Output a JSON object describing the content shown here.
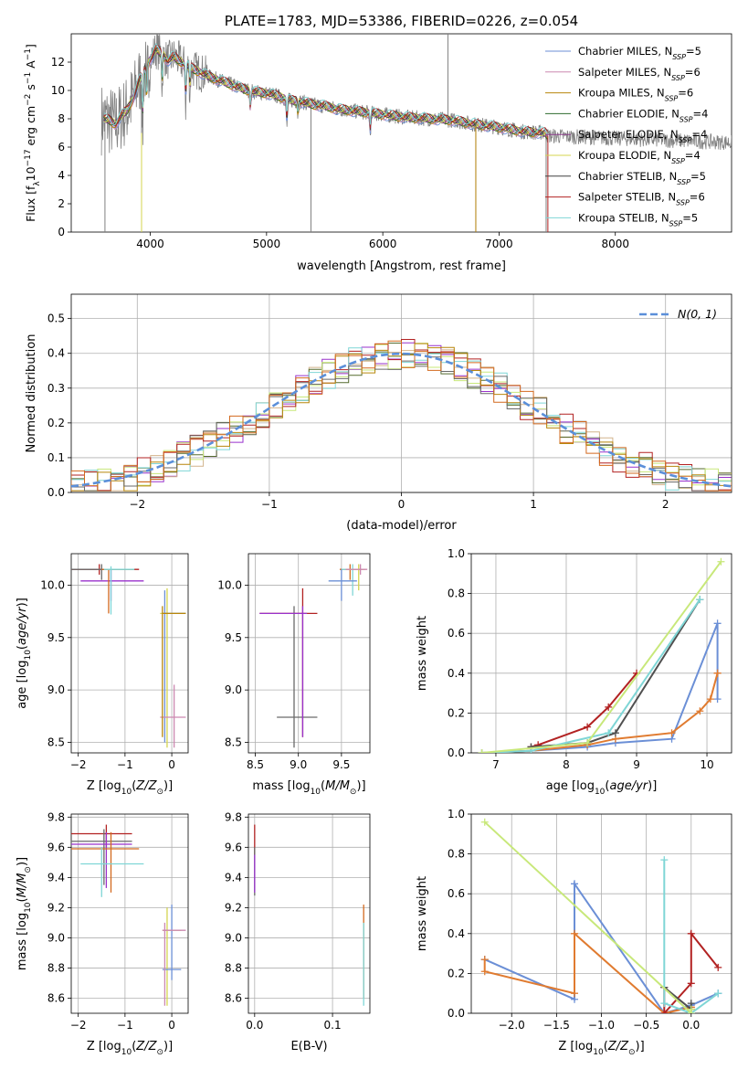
{
  "colors": {
    "data": "#808080",
    "fit": [
      "#6b8fd6",
      "#cc88b0",
      "#b8860b",
      "#2e6b2e",
      "#8b3a8b",
      "#d4d44f",
      "#404040",
      "#b22222",
      "#7fd6d6"
    ],
    "hist": [
      "#9932cc",
      "#d2b48c",
      "#556b2f",
      "#c8e87a",
      "#b22222",
      "#7fd6d6",
      "#b8860b",
      "#696969",
      "#d2691e"
    ],
    "normal": "#5b8fd9",
    "p_cols": [
      "#b22222",
      "#6a6a6a",
      "#9932cc",
      "#d2691e",
      "#7fd6d6",
      "#d4d44f",
      "#6b8fd6",
      "#cc88b0",
      "#b8860b"
    ],
    "mw": [
      "#6b8fd6",
      "#e07b30",
      "#b22222",
      "#505050",
      "#7fd6d6",
      "#c8e87a"
    ]
  },
  "chart_data": [
    {
      "type": "line",
      "title": "PLATE=1783, MJD=53386, FIBERID=0226, z=0.054",
      "xlabel": "wavelength [Angstrom, rest frame]",
      "ylabel": "Flux [f",
      "ylabel_parts": [
        "Flux [f",
        "λ",
        "10",
        "−17",
        " erg cm",
        "−2",
        " s",
        "−1",
        " A",
        "−1",
        "]"
      ],
      "xlim": [
        3320,
        9000
      ],
      "ylim": [
        0,
        14
      ],
      "xticks": [
        4000,
        5000,
        6000,
        7000,
        8000
      ],
      "yticks": [
        0,
        2,
        4,
        6,
        8,
        10,
        12
      ],
      "legend": [
        {
          "name": "Chabrier MILES",
          "n": "5"
        },
        {
          "name": "Salpeter MILES",
          "n": "6"
        },
        {
          "name": "Kroupa MILES",
          "n": "6"
        },
        {
          "name": "Chabrier ELODIE",
          "n": "4"
        },
        {
          "name": "Salpeter ELODIE",
          "n": "4"
        },
        {
          "name": "Kroupa ELODIE",
          "n": "4"
        },
        {
          "name": "Chabrier STELIB",
          "n": "5"
        },
        {
          "name": "Salpeter STELIB",
          "n": "6"
        },
        {
          "name": "Kroupa STELIB",
          "n": "5"
        }
      ],
      "legend_n_label": "N",
      "legend_n_sub": "SSP",
      "continuum": {
        "wl": [
          3600,
          3650,
          3700,
          3750,
          3800,
          3850,
          3900,
          3950,
          4000,
          4050,
          4100,
          4150,
          4200,
          4300,
          4400,
          4500,
          4600,
          4700,
          4800,
          4900,
          5000,
          5100,
          5200,
          5300,
          5400,
          5500,
          5600,
          5800,
          6000,
          6200,
          6400,
          6600,
          6800,
          7000,
          7200,
          7400,
          7420
        ],
        "flux": [
          8.0,
          7.9,
          7.6,
          8.2,
          8.6,
          9.4,
          10.6,
          11.4,
          12.2,
          12.9,
          12.6,
          12.1,
          12.4,
          11.8,
          11.4,
          11.0,
          10.7,
          10.4,
          10.1,
          9.9,
          9.8,
          9.6,
          9.3,
          9.2,
          9.0,
          8.9,
          8.7,
          8.5,
          8.3,
          8.1,
          8.0,
          7.9,
          7.6,
          7.4,
          7.1,
          7.0,
          6.8
        ]
      },
      "absorption_lines": [
        {
          "wl": 3934,
          "depth": 4.0
        },
        {
          "wl": 3969,
          "depth": 3.0
        },
        {
          "wl": 4102,
          "depth": 2.5
        },
        {
          "wl": 4305,
          "depth": 3.0
        },
        {
          "wl": 4341,
          "depth": 2.0
        },
        {
          "wl": 4861,
          "depth": 1.5
        },
        {
          "wl": 5175,
          "depth": 2.0
        },
        {
          "wl": 5270,
          "depth": 1.0
        },
        {
          "wl": 5892,
          "depth": 1.5
        }
      ],
      "data_spikes": [
        {
          "wl": 3610,
          "flux": 0.0
        },
        {
          "wl": 3925,
          "flux": 4.0
        },
        {
          "wl": 5382,
          "flux": 0.0
        },
        {
          "wl": 6560,
          "flux": 14.0
        },
        {
          "wl": 6800,
          "flux": 0.0
        },
        {
          "wl": 7405,
          "flux": 0.0
        }
      ],
      "data_wl_range": [
        3580,
        9000
      ],
      "model_wl_range": [
        3600,
        7420
      ]
    },
    {
      "type": "step",
      "xlabel": "(data-model)/error",
      "ylabel": "Normed distribution",
      "xlim": [
        -2.5,
        2.5
      ],
      "ylim": [
        0,
        0.57
      ],
      "xticks": [
        -2,
        -1,
        0,
        1,
        2
      ],
      "yticks": [
        0.0,
        0.1,
        0.2,
        0.3,
        0.4,
        0.5
      ],
      "legend": [
        "N(0, 1)"
      ],
      "bins": 50
    },
    {
      "type": "errorbar",
      "xlabel": "Z [log10(Z/Z⊙)]",
      "ylabel": "age  [log10(age/yr)]",
      "xlim": [
        -2.15,
        0.35
      ],
      "ylim": [
        8.4,
        10.3
      ],
      "xticks": [
        -2,
        -1,
        0
      ],
      "yticks": [
        8.5,
        9.0,
        9.5,
        10.0
      ],
      "points": [
        {
          "x": -1.55,
          "y": 10.15,
          "xlo": -2.3,
          "xhi": -0.7,
          "ylo": 10.1,
          "yhi": 10.2
        },
        {
          "x": -1.5,
          "y": 10.15,
          "xlo": -2.3,
          "xhi": -0.8,
          "ylo": 10.05,
          "yhi": 10.2
        },
        {
          "x": -1.3,
          "y": 10.04,
          "xlo": -1.95,
          "xhi": -0.6,
          "ylo": 9.85,
          "yhi": 10.15
        },
        {
          "x": -1.35,
          "y": 10.15,
          "xlo": -1.5,
          "xhi": -0.8,
          "ylo": 9.73,
          "yhi": 10.15
        },
        {
          "x": -1.3,
          "y": 10.15,
          "xlo": -1.45,
          "xhi": -0.8,
          "ylo": 9.72,
          "yhi": 10.18
        },
        {
          "x": -0.1,
          "y": 9.73,
          "xlo": -0.25,
          "xhi": 0.3,
          "ylo": 8.45,
          "yhi": 9.97
        },
        {
          "x": -0.15,
          "y": 9.73,
          "xlo": -0.2,
          "xhi": 0.3,
          "ylo": 8.5,
          "yhi": 9.95
        },
        {
          "x": 0.05,
          "y": 8.74,
          "xlo": -0.25,
          "xhi": 0.3,
          "ylo": 8.45,
          "yhi": 9.05
        },
        {
          "x": -0.2,
          "y": 9.73,
          "xlo": -0.2,
          "xhi": 0.3,
          "ylo": 8.55,
          "yhi": 9.8
        }
      ]
    },
    {
      "type": "errorbar",
      "xlabel": "mass [log10(M/M⊙)]",
      "ylabel": "",
      "xlim": [
        8.42,
        9.83
      ],
      "ylim": [
        8.4,
        10.3
      ],
      "xticks": [
        8.5,
        9.0,
        9.5
      ],
      "yticks": [
        8.5,
        9.0,
        9.5,
        10.0
      ],
      "points": [
        {
          "x": 9.05,
          "y": 9.73,
          "xlo": 8.55,
          "xhi": 9.22,
          "ylo": 8.55,
          "yhi": 9.97
        },
        {
          "x": 8.95,
          "y": 8.74,
          "xlo": 8.75,
          "xhi": 9.22,
          "ylo": 8.45,
          "yhi": 9.8
        },
        {
          "x": 9.05,
          "y": 9.73,
          "xlo": 8.55,
          "xhi": 9.1,
          "ylo": 8.55,
          "yhi": 9.8
        },
        {
          "x": 9.6,
          "y": 10.15,
          "xlo": 9.48,
          "xhi": 9.75,
          "ylo": 10.05,
          "yhi": 10.2
        },
        {
          "x": 9.63,
          "y": 10.15,
          "xlo": 9.5,
          "xhi": 9.7,
          "ylo": 9.9,
          "yhi": 10.2
        },
        {
          "x": 9.7,
          "y": 10.15,
          "xlo": 9.55,
          "xhi": 9.78,
          "ylo": 9.95,
          "yhi": 10.2
        },
        {
          "x": 9.5,
          "y": 10.04,
          "xlo": 9.35,
          "xhi": 9.68,
          "ylo": 9.85,
          "yhi": 10.15
        },
        {
          "x": 9.72,
          "y": 10.15,
          "xlo": 9.55,
          "xhi": 9.8,
          "ylo": 10.1,
          "yhi": 10.2
        }
      ]
    },
    {
      "type": "line",
      "xlabel": "age  [log10(age/yr)]",
      "ylabel": "mass weight",
      "xlim": [
        6.65,
        10.35
      ],
      "ylim": [
        0,
        1.0
      ],
      "xticks": [
        7,
        8,
        9,
        10
      ],
      "yticks": [
        0.0,
        0.2,
        0.4,
        0.6,
        0.8,
        1.0
      ],
      "series": [
        {
          "x": [
            6.8,
            7.5,
            8.3,
            8.7,
            9.5,
            10.15,
            10.15
          ],
          "y": [
            0.0,
            0.01,
            0.03,
            0.05,
            0.07,
            0.65,
            0.27
          ]
        },
        {
          "x": [
            6.8,
            7.5,
            8.3,
            8.7,
            9.5,
            9.9,
            10.05,
            10.15,
            10.15
          ],
          "y": [
            0.0,
            0.01,
            0.04,
            0.07,
            0.1,
            0.21,
            0.27,
            0.4,
            0.4
          ]
        },
        {
          "x": [
            7.5,
            7.6,
            8.3,
            8.6,
            9.0
          ],
          "y": [
            0.03,
            0.04,
            0.13,
            0.23,
            0.4
          ]
        },
        {
          "x": [
            7.5,
            8.3,
            8.7,
            9.9
          ],
          "y": [
            0.03,
            0.05,
            0.1,
            0.77
          ]
        },
        {
          "x": [
            6.8,
            7.5,
            8.6,
            9.9
          ],
          "y": [
            0.0,
            0.01,
            0.1,
            0.77
          ]
        },
        {
          "x": [
            6.8,
            8.3,
            10.2
          ],
          "y": [
            0.0,
            0.05,
            0.96
          ]
        }
      ]
    },
    {
      "type": "errorbar",
      "xlabel": "Z [log10(Z/Z⊙)]",
      "ylabel": "mass [log10(M/M⊙)]",
      "xlim": [
        -2.15,
        0.35
      ],
      "ylim": [
        8.5,
        9.82
      ],
      "xticks": [
        -2,
        -1,
        0
      ],
      "yticks": [
        8.6,
        8.8,
        9.0,
        9.2,
        9.4,
        9.6,
        9.8
      ],
      "points": [
        {
          "x": -1.4,
          "y": 9.69,
          "xlo": -2.2,
          "xhi": -0.85,
          "ylo": 9.6,
          "yhi": 9.75
        },
        {
          "x": -1.45,
          "y": 9.64,
          "xlo": -2.2,
          "xhi": -0.85,
          "ylo": 9.35,
          "yhi": 9.72
        },
        {
          "x": -1.4,
          "y": 9.62,
          "xlo": -2.2,
          "xhi": -0.85,
          "ylo": 9.33,
          "yhi": 9.7
        },
        {
          "x": -1.3,
          "y": 9.59,
          "xlo": -2.2,
          "xhi": -0.7,
          "ylo": 9.3,
          "yhi": 9.7
        },
        {
          "x": -1.5,
          "y": 9.49,
          "xlo": -1.95,
          "xhi": -0.6,
          "ylo": 9.27,
          "yhi": 9.6
        },
        {
          "x": -0.1,
          "y": 9.05,
          "xlo": -0.2,
          "xhi": 0.2,
          "ylo": 8.55,
          "yhi": 9.2
        },
        {
          "x": 0.0,
          "y": 8.79,
          "xlo": -0.2,
          "xhi": 0.2,
          "ylo": 8.72,
          "yhi": 9.22
        },
        {
          "x": -0.15,
          "y": 9.05,
          "xlo": -0.2,
          "xhi": 0.3,
          "ylo": 8.55,
          "yhi": 9.1
        }
      ]
    },
    {
      "type": "errorbar",
      "xlabel": "E(B-V)",
      "ylabel": "",
      "xlim": [
        -0.008,
        0.148
      ],
      "ylim": [
        8.5,
        9.82
      ],
      "xticks": [
        0.0,
        0.1
      ],
      "yticks": [
        8.6,
        8.8,
        9.0,
        9.2,
        9.4,
        9.6,
        9.8
      ],
      "points": [
        {
          "x": 0.0,
          "y": 9.69,
          "ylo": 9.55,
          "yhi": 9.75
        },
        {
          "x": 0.0,
          "y": 9.5,
          "ylo": 9.28,
          "yhi": 9.6
        },
        {
          "x": 0.0,
          "y": 9.4,
          "ylo": 9.3,
          "yhi": 9.55
        },
        {
          "x": 0.14,
          "y": 9.0,
          "ylo": 8.6,
          "yhi": 9.22
        },
        {
          "x": 0.14,
          "y": 8.9,
          "ylo": 8.55,
          "yhi": 9.1
        }
      ]
    },
    {
      "type": "line",
      "xlabel": "Z [log10(Z/Z⊙)]",
      "ylabel": "mass weight",
      "xlim": [
        -2.45,
        0.45
      ],
      "ylim": [
        0,
        1.0
      ],
      "xticks": [
        -2.0,
        -1.5,
        -1.0,
        -0.5,
        0.0
      ],
      "yticks": [
        0.0,
        0.2,
        0.4,
        0.6,
        0.8,
        1.0
      ],
      "series": [
        {
          "x": [
            -2.3,
            -2.3,
            -1.3,
            -1.3,
            -0.3,
            -0.3,
            0.0,
            0.3,
            0.3
          ],
          "y": [
            0.27,
            0.27,
            0.07,
            0.65,
            0.0,
            0.0,
            0.04,
            0.1,
            0.1
          ]
        },
        {
          "x": [
            -2.3,
            -2.3,
            -1.3,
            -1.3,
            -0.3,
            0.0,
            0.0
          ],
          "y": [
            0.27,
            0.21,
            0.1,
            0.4,
            0.0,
            0.03,
            0.03
          ]
        },
        {
          "x": [
            -0.3,
            -0.3,
            0.0,
            0.0,
            0.3
          ],
          "y": [
            0.13,
            0.0,
            0.15,
            0.4,
            0.23
          ]
        },
        {
          "x": [
            -0.3,
            0.0,
            0.0
          ],
          "y": [
            0.13,
            0.02,
            0.05
          ]
        },
        {
          "x": [
            -0.3,
            -0.3,
            0.0,
            0.3
          ],
          "y": [
            0.77,
            0.05,
            0.0,
            0.1
          ]
        },
        {
          "x": [
            -2.3,
            0.0,
            0.0
          ],
          "y": [
            0.96,
            0.0,
            0.02
          ]
        }
      ]
    }
  ]
}
